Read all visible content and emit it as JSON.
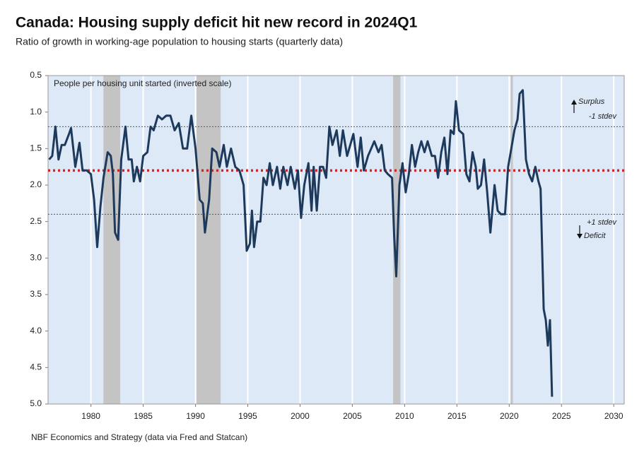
{
  "chart_data": {
    "type": "line",
    "title": "Canada: Housing supply deficit hit new record in 2024Q1",
    "subtitle": "Ratio of growth in working-age population to housing starts (quarterly data)",
    "source": "NBF Economics and Strategy (data via Fred and Statcan)",
    "axis_note": "People per housing unit started (inverted scale)",
    "surplus_label": "Surplus",
    "deficit_label": "Deficit",
    "inverted": true,
    "grid": true,
    "color": "#1d3a5c",
    "background": "#dde9f7",
    "shade_color": "#c4c4c4",
    "reference_lines": [
      {
        "value": 1.2,
        "label": "-1 stdev",
        "style": "dotted",
        "color": "#555"
      },
      {
        "value": 1.8,
        "style": "thick-dotted",
        "color": "#c8282d"
      },
      {
        "value": 2.4,
        "label": "+1 stdev",
        "style": "dotted",
        "color": "#555"
      }
    ],
    "shaded": [
      [
        1981.2,
        1982.8
      ],
      [
        1990.1,
        1992.4
      ],
      [
        2008.9,
        2009.6
      ],
      [
        2020.15,
        2020.35
      ]
    ],
    "xlim": [
      1975.9,
      2031
    ],
    "xticks": [
      1980,
      1985,
      1990,
      1995,
      2000,
      2005,
      2010,
      2015,
      2020,
      2025,
      2030
    ],
    "ylim": [
      0.5,
      5.0
    ],
    "yticks": [
      0.5,
      {
        "value": 1.0,
        "label": "1.0"
      },
      1.5,
      {
        "value": 2.0,
        "label": "2.0"
      },
      2.5,
      {
        "value": 3.0,
        "label": "3.0"
      },
      3.5,
      {
        "value": 4.0,
        "label": "4.0"
      },
      4.5,
      {
        "value": 5.0,
        "label": "5.0"
      }
    ],
    "x": [
      1976.0,
      1976.3,
      1976.6,
      1976.9,
      1977.2,
      1977.5,
      1977.9,
      1978.1,
      1978.5,
      1978.9,
      1979.2,
      1979.6,
      1980.0,
      1980.3,
      1980.6,
      1980.9,
      1981.2,
      1981.6,
      1981.9,
      1982.1,
      1982.3,
      1982.6,
      1982.9,
      1983.3,
      1983.6,
      1983.9,
      1984.1,
      1984.4,
      1984.7,
      1985.0,
      1985.4,
      1985.7,
      1986.0,
      1986.4,
      1986.8,
      1987.2,
      1987.6,
      1988.0,
      1988.4,
      1988.8,
      1989.2,
      1989.6,
      1990.0,
      1990.4,
      1990.7,
      1990.9,
      1991.3,
      1991.6,
      1992.0,
      1992.3,
      1992.7,
      1993.0,
      1993.4,
      1993.8,
      1994.2,
      1994.6,
      1994.9,
      1995.2,
      1995.4,
      1995.6,
      1995.9,
      1996.2,
      1996.5,
      1996.8,
      1997.1,
      1997.4,
      1997.8,
      1998.1,
      1998.4,
      1998.8,
      1999.1,
      1999.5,
      1999.8,
      2000.1,
      2000.4,
      2000.8,
      2001.1,
      2001.3,
      2001.6,
      2001.9,
      2002.2,
      2002.5,
      2002.8,
      2003.1,
      2003.5,
      2003.8,
      2004.1,
      2004.5,
      2004.8,
      2005.1,
      2005.5,
      2005.8,
      2006.1,
      2006.5,
      2006.8,
      2007.1,
      2007.5,
      2007.8,
      2008.1,
      2008.4,
      2008.8,
      2009.0,
      2009.2,
      2009.5,
      2009.8,
      2010.1,
      2010.4,
      2010.7,
      2011.0,
      2011.3,
      2011.6,
      2011.9,
      2012.2,
      2012.6,
      2012.9,
      2013.2,
      2013.5,
      2013.8,
      2014.1,
      2014.4,
      2014.7,
      2014.9,
      2015.2,
      2015.6,
      2015.9,
      2016.2,
      2016.5,
      2016.8,
      2017.0,
      2017.3,
      2017.6,
      2017.9,
      2018.2,
      2018.6,
      2018.9,
      2019.2,
      2019.6,
      2019.9,
      2020.2,
      2020.5,
      2020.8,
      2021.0,
      2021.3,
      2021.6,
      2021.9,
      2022.2,
      2022.5,
      2022.8,
      2023.0,
      2023.3,
      2023.5,
      2023.7,
      2023.9,
      2024.1
    ],
    "values": [
      1.65,
      1.6,
      1.2,
      1.65,
      1.45,
      1.45,
      1.3,
      1.22,
      1.75,
      1.42,
      1.8,
      1.8,
      1.85,
      2.2,
      2.85,
      2.3,
      1.9,
      1.55,
      1.6,
      1.85,
      2.65,
      2.75,
      1.65,
      1.2,
      1.65,
      1.65,
      1.95,
      1.75,
      1.95,
      1.6,
      1.55,
      1.2,
      1.25,
      1.05,
      1.1,
      1.05,
      1.05,
      1.25,
      1.15,
      1.5,
      1.5,
      1.05,
      1.5,
      2.2,
      2.25,
      2.65,
      2.2,
      1.5,
      1.55,
      1.75,
      1.45,
      1.75,
      1.5,
      1.75,
      1.8,
      2.0,
      2.9,
      2.8,
      2.35,
      2.85,
      2.5,
      2.5,
      1.9,
      2.0,
      1.7,
      2.0,
      1.75,
      2.05,
      1.75,
      2.0,
      1.75,
      2.05,
      1.8,
      2.45,
      2.0,
      1.7,
      2.35,
      1.75,
      2.35,
      1.75,
      1.75,
      1.9,
      1.2,
      1.45,
      1.25,
      1.6,
      1.25,
      1.6,
      1.45,
      1.3,
      1.75,
      1.35,
      1.8,
      1.6,
      1.5,
      1.4,
      1.55,
      1.45,
      1.8,
      1.85,
      1.9,
      2.7,
      3.25,
      2.0,
      1.7,
      2.1,
      1.85,
      1.45,
      1.75,
      1.55,
      1.4,
      1.55,
      1.4,
      1.6,
      1.6,
      1.9,
      1.55,
      1.35,
      1.85,
      1.25,
      1.3,
      0.85,
      1.25,
      1.3,
      1.85,
      1.95,
      1.55,
      1.75,
      2.05,
      2.0,
      1.65,
      2.1,
      2.65,
      2.0,
      2.35,
      2.4,
      2.4,
      1.75,
      1.5,
      1.25,
      1.1,
      0.75,
      0.7,
      1.65,
      1.85,
      1.95,
      1.75,
      1.95,
      2.05,
      3.7,
      3.85,
      4.2,
      3.85,
      4.9
    ]
  }
}
